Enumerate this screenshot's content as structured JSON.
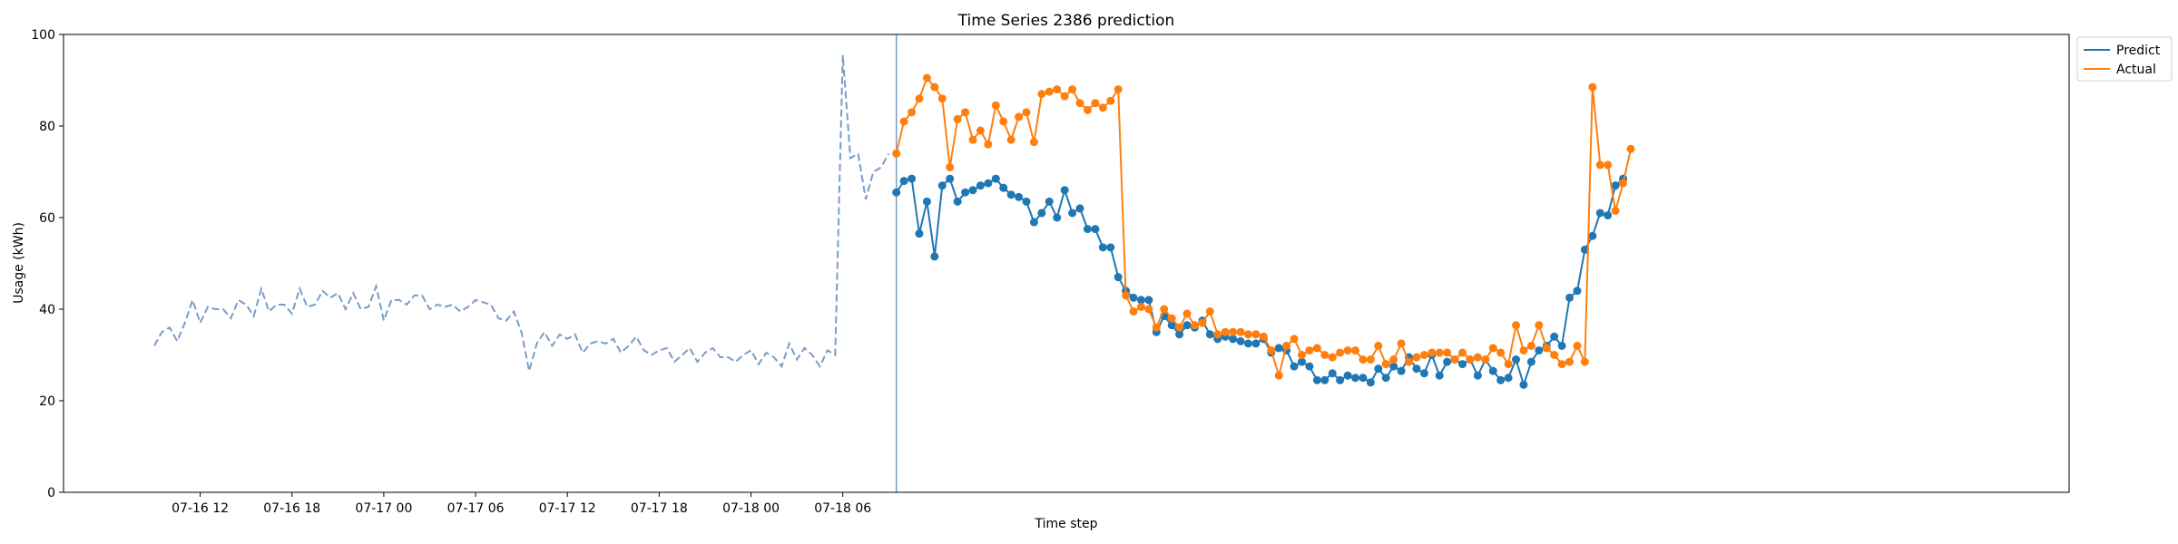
{
  "chart_data": {
    "type": "line",
    "title": "Time Series 2386 prediction",
    "xlabel": "Time step",
    "ylabel": "Usage (kWh)",
    "ylim": [
      0,
      100
    ],
    "yticks": [
      0,
      20,
      40,
      60,
      80,
      100
    ],
    "xticks": [
      "07-16 12",
      "07-16 18",
      "07-17 00",
      "07-17 06",
      "07-17 12",
      "07-17 18",
      "07-18 00",
      "07-18 06"
    ],
    "time_start": "07-16 09:00",
    "interval_minutes": 30,
    "forecast_start": "07-17 09:30",
    "legend": [
      "Predict",
      "Actual"
    ],
    "legend_position": "outside top-right",
    "colors": {
      "history": "#7a9cc6",
      "predict": "#1f77b4",
      "actual": "#ff7f0e",
      "divider": "#7a9cc6"
    },
    "history": [
      32,
      35,
      36,
      33,
      37,
      42,
      37,
      40.5,
      40,
      40,
      38,
      42,
      41,
      38.5,
      44.5,
      39.5,
      41,
      41,
      39,
      44.5,
      40.5,
      41,
      44,
      42.5,
      43.5,
      40,
      43.5,
      40,
      40.5,
      45,
      37.5,
      42,
      42,
      41,
      43,
      43,
      40,
      41,
      40.5,
      41,
      39.5,
      40.5,
      42,
      41.5,
      41,
      38,
      37.5,
      39.5,
      35,
      26.5,
      32.5,
      35,
      32,
      34.5,
      33.5,
      34.5,
      30.5,
      32.5,
      33,
      32.5,
      33.5,
      30.5,
      32,
      34,
      31,
      30,
      31,
      31.5,
      28.5,
      30,
      31.5,
      28.5,
      30.5,
      31.5,
      29.5,
      29.5,
      28.5,
      30,
      31,
      28,
      30.5,
      29.5,
      27.5,
      32.5,
      29,
      31.5,
      30,
      27.5,
      31,
      30,
      95.5,
      73,
      74,
      64,
      70,
      71,
      74
    ],
    "series": [
      {
        "name": "Predict",
        "values": [
          65.5,
          68,
          68.5,
          56.5,
          63.5,
          51.5,
          67,
          68.5,
          63.5,
          65.5,
          66,
          67,
          67.5,
          68.5,
          66.5,
          65,
          64.5,
          63.5,
          59,
          61,
          63.5,
          60,
          66,
          61,
          62,
          57.5,
          57.5,
          53.5,
          53.5,
          47,
          44,
          42.5,
          42,
          42,
          35,
          38.5,
          36.5,
          34.5,
          36.5,
          36,
          37.5,
          34.5,
          33.5,
          34,
          33.5,
          33,
          32.5,
          32.5,
          33.5,
          30.5,
          31.5,
          31,
          27.5,
          28.5,
          27.5,
          24.5,
          24.5,
          26,
          24.5,
          25.5,
          25,
          25,
          24,
          27,
          25,
          27.5,
          26.5,
          29.5,
          27,
          26,
          30,
          25.5,
          28.5,
          29,
          28,
          29,
          25.5,
          29,
          26.5,
          24.5,
          25,
          29,
          23.5,
          28.5,
          31,
          32,
          34,
          32,
          42.5,
          44,
          53,
          56,
          61,
          60.5,
          67,
          68.5
        ]
      },
      {
        "name": "Actual",
        "values": [
          74,
          81,
          83,
          86,
          90.5,
          88.5,
          86,
          71,
          81.5,
          83,
          77,
          79,
          76,
          84.5,
          81,
          77,
          82,
          83,
          76.5,
          87,
          87.5,
          88,
          86.5,
          88,
          85,
          83.5,
          85,
          84,
          85.5,
          88,
          43,
          39.5,
          40.5,
          40,
          36,
          40,
          38,
          36,
          39,
          36.5,
          37,
          39.5,
          34.5,
          35,
          35,
          35,
          34.5,
          34.5,
          34,
          31,
          25.5,
          32,
          33.5,
          30,
          31,
          31.5,
          30,
          29.5,
          30.5,
          31,
          31,
          29,
          29,
          32,
          28,
          29,
          32.5,
          28.5,
          29.5,
          30,
          30.5,
          30.5,
          30.5,
          29,
          30.5,
          29,
          29.5,
          29,
          31.5,
          30.5,
          28,
          36.5,
          31,
          32,
          36.5,
          31.5,
          30,
          28,
          28.5,
          32,
          28.5,
          88.5,
          71.5,
          71.5,
          61.5,
          67.5,
          75
        ]
      }
    ]
  }
}
